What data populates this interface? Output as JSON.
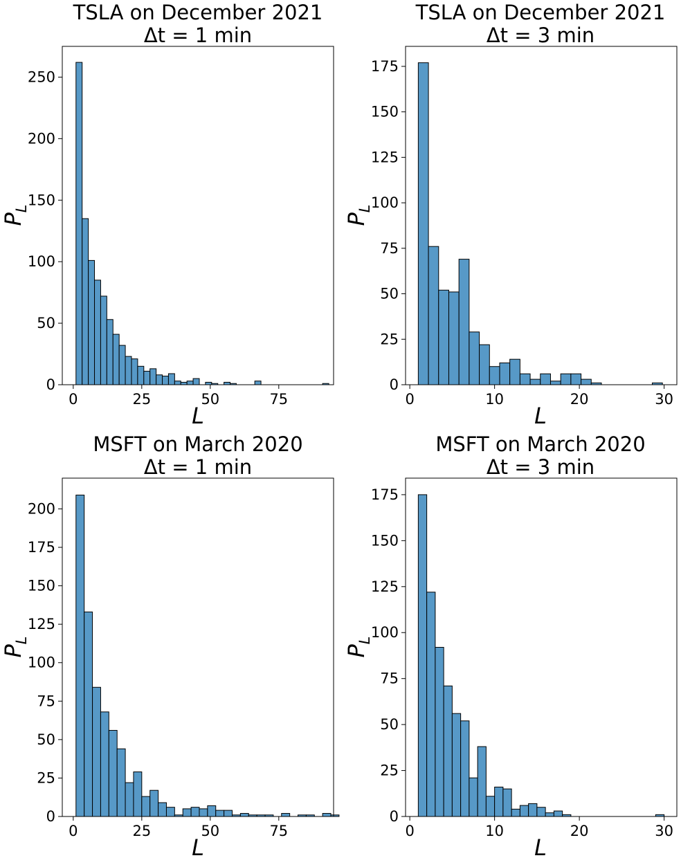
{
  "chart_data": [
    {
      "type": "bar",
      "title_line1": "TSLA on December 2021",
      "title_line2": "Δt = 1 min",
      "xlabel": "L",
      "ylabel": "P",
      "ylabel_sub": "L",
      "xlim": [
        -4,
        95
      ],
      "ylim": [
        0,
        275
      ],
      "xticks": [
        0,
        25,
        50,
        75
      ],
      "yticks": [
        0,
        50,
        100,
        150,
        200,
        250
      ],
      "bin_start": 1,
      "bin_width": 2.25,
      "values": [
        262,
        135,
        101,
        85,
        72,
        53,
        41,
        32,
        23,
        21,
        15,
        11,
        13,
        8,
        7,
        9,
        3,
        2,
        3,
        5,
        0,
        2,
        1,
        0,
        2,
        1,
        0,
        0,
        0,
        3,
        0,
        0,
        0,
        0,
        0,
        0,
        0,
        0,
        0,
        0,
        1
      ]
    },
    {
      "type": "bar",
      "title_line1": "TSLA on December 2021",
      "title_line2": "Δt = 3 min",
      "xlabel": "L",
      "ylabel": "P",
      "ylabel_sub": "L",
      "xlim": [
        -0.5,
        31.5
      ],
      "ylim": [
        0,
        186
      ],
      "xticks": [
        0,
        10,
        20,
        30
      ],
      "yticks": [
        0,
        25,
        50,
        75,
        100,
        125,
        150,
        175
      ],
      "bin_start": 1,
      "bin_width": 1.2,
      "values": [
        177,
        76,
        52,
        51,
        69,
        29,
        22,
        10,
        12,
        14,
        6,
        3,
        6,
        2,
        6,
        6,
        3,
        1,
        0,
        0,
        0,
        0,
        0,
        1
      ]
    },
    {
      "type": "bar",
      "title_line1": "MSFT on March 2020",
      "title_line2": "Δt = 1 min",
      "xlabel": "L",
      "ylabel": "P",
      "ylabel_sub": "L",
      "xlim": [
        -4,
        95
      ],
      "ylim": [
        0,
        220
      ],
      "xticks": [
        0,
        25,
        50,
        75
      ],
      "yticks": [
        0,
        25,
        50,
        75,
        100,
        125,
        150,
        175,
        200
      ],
      "bin_start": 1,
      "bin_width": 3,
      "values": [
        209,
        133,
        84,
        68,
        56,
        44,
        22,
        29,
        13,
        17,
        9,
        6,
        1,
        5,
        6,
        5,
        7,
        4,
        4,
        1,
        2,
        1,
        1,
        1,
        0,
        2,
        0,
        1,
        1,
        0,
        2,
        1
      ]
    },
    {
      "type": "bar",
      "title_line1": "MSFT on March 2020",
      "title_line2": "Δt = 3 min",
      "xlabel": "L",
      "ylabel": "P",
      "ylabel_sub": "L",
      "xlim": [
        -0.5,
        31.5
      ],
      "ylim": [
        0,
        184
      ],
      "xticks": [
        0,
        10,
        20,
        30
      ],
      "yticks": [
        0,
        25,
        50,
        75,
        100,
        125,
        150,
        175
      ],
      "bin_start": 1,
      "bin_width": 1,
      "values": [
        175,
        122,
        92,
        71,
        56,
        52,
        21,
        38,
        11,
        16,
        15,
        4,
        6,
        7,
        5,
        2,
        3,
        1,
        0,
        0,
        0,
        0,
        0,
        0,
        0,
        0,
        0,
        0,
        1
      ]
    }
  ]
}
